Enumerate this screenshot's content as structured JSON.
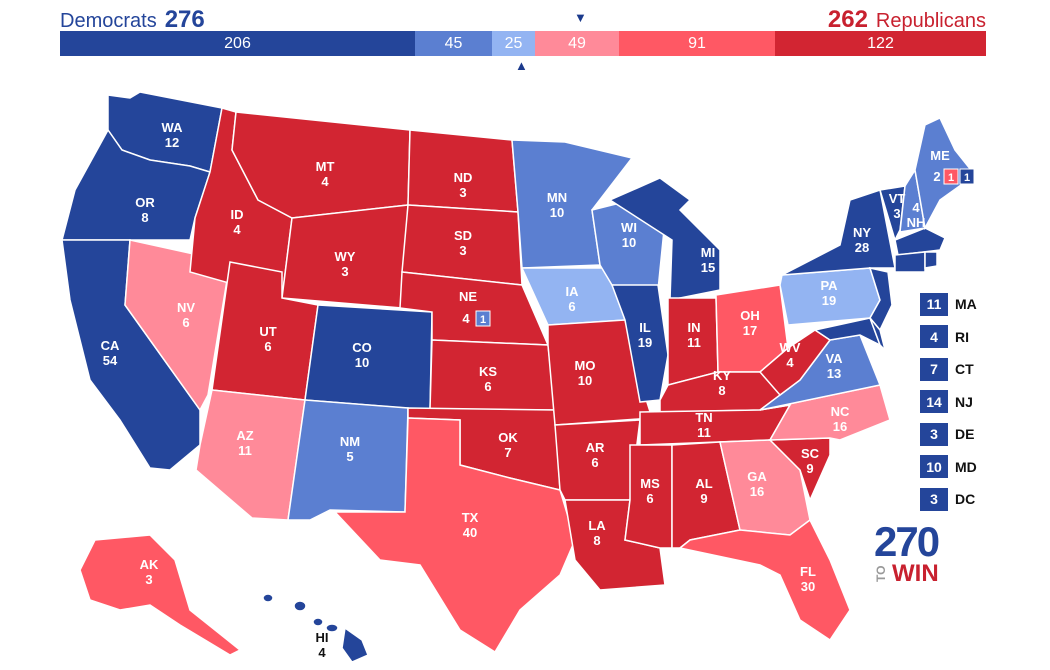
{
  "header": {
    "dem_label": "Democrats",
    "dem_total": "276",
    "rep_total": "262",
    "rep_label": "Republicans"
  },
  "bar": [
    {
      "value": "206",
      "color": "#24459a"
    },
    {
      "value": "45",
      "color": "#5b7fd1"
    },
    {
      "value": "25",
      "color": "#93b4f2"
    },
    {
      "value": "49",
      "color": "#ff8a99"
    },
    {
      "value": "91",
      "color": "#ff5864"
    },
    {
      "value": "122",
      "color": "#d22532"
    }
  ],
  "colors": {
    "safe_dem": "#24459a",
    "likely_dem": "#5b7fd1",
    "lean_dem": "#93b4f2",
    "lean_rep": "#ff8a99",
    "likely_rep": "#ff5864",
    "safe_rep": "#d22532"
  },
  "states": {
    "WA": {
      "abbr": "WA",
      "ev": "12"
    },
    "OR": {
      "abbr": "OR",
      "ev": "8"
    },
    "CA": {
      "abbr": "CA",
      "ev": "54"
    },
    "NV": {
      "abbr": "NV",
      "ev": "6"
    },
    "ID": {
      "abbr": "ID",
      "ev": "4"
    },
    "MT": {
      "abbr": "MT",
      "ev": "4"
    },
    "WY": {
      "abbr": "WY",
      "ev": "3"
    },
    "UT": {
      "abbr": "UT",
      "ev": "6"
    },
    "AZ": {
      "abbr": "AZ",
      "ev": "11"
    },
    "CO": {
      "abbr": "CO",
      "ev": "10"
    },
    "NM": {
      "abbr": "NM",
      "ev": "5"
    },
    "ND": {
      "abbr": "ND",
      "ev": "3"
    },
    "SD": {
      "abbr": "SD",
      "ev": "3"
    },
    "NE": {
      "abbr": "NE",
      "ev": "4",
      "district": "1"
    },
    "KS": {
      "abbr": "KS",
      "ev": "6"
    },
    "OK": {
      "abbr": "OK",
      "ev": "7"
    },
    "TX": {
      "abbr": "TX",
      "ev": "40"
    },
    "MN": {
      "abbr": "MN",
      "ev": "10"
    },
    "IA": {
      "abbr": "IA",
      "ev": "6"
    },
    "MO": {
      "abbr": "MO",
      "ev": "10"
    },
    "AR": {
      "abbr": "AR",
      "ev": "6"
    },
    "LA": {
      "abbr": "LA",
      "ev": "8"
    },
    "WI": {
      "abbr": "WI",
      "ev": "10"
    },
    "IL": {
      "abbr": "IL",
      "ev": "19"
    },
    "MI": {
      "abbr": "MI",
      "ev": "15"
    },
    "IN": {
      "abbr": "IN",
      "ev": "11"
    },
    "OH": {
      "abbr": "OH",
      "ev": "17"
    },
    "KY": {
      "abbr": "KY",
      "ev": "8"
    },
    "TN": {
      "abbr": "TN",
      "ev": "11"
    },
    "MS": {
      "abbr": "MS",
      "ev": "6"
    },
    "AL": {
      "abbr": "AL",
      "ev": "9"
    },
    "GA": {
      "abbr": "GA",
      "ev": "16"
    },
    "FL": {
      "abbr": "FL",
      "ev": "30"
    },
    "SC": {
      "abbr": "SC",
      "ev": "9"
    },
    "NC": {
      "abbr": "NC",
      "ev": "16"
    },
    "VA": {
      "abbr": "VA",
      "ev": "13"
    },
    "WV": {
      "abbr": "WV",
      "ev": "4"
    },
    "PA": {
      "abbr": "PA",
      "ev": "19"
    },
    "NY": {
      "abbr": "NY",
      "ev": "28"
    },
    "VT": {
      "abbr": "VT",
      "ev": "3"
    },
    "NH": {
      "abbr": "NH",
      "ev": "4"
    },
    "ME": {
      "abbr": "ME",
      "ev": "2",
      "district_rep": "1",
      "district_dem": "1"
    },
    "AK": {
      "abbr": "AK",
      "ev": "3"
    },
    "HI": {
      "abbr": "HI",
      "ev": "4"
    }
  },
  "small_states": [
    {
      "ev": "11",
      "abbr": "MA"
    },
    {
      "ev": "4",
      "abbr": "RI"
    },
    {
      "ev": "7",
      "abbr": "CT"
    },
    {
      "ev": "14",
      "abbr": "NJ"
    },
    {
      "ev": "3",
      "abbr": "DE"
    },
    {
      "ev": "10",
      "abbr": "MD"
    },
    {
      "ev": "3",
      "abbr": "DC"
    }
  ],
  "logo": {
    "num": "270",
    "to": "TO",
    "win": "WIN"
  }
}
